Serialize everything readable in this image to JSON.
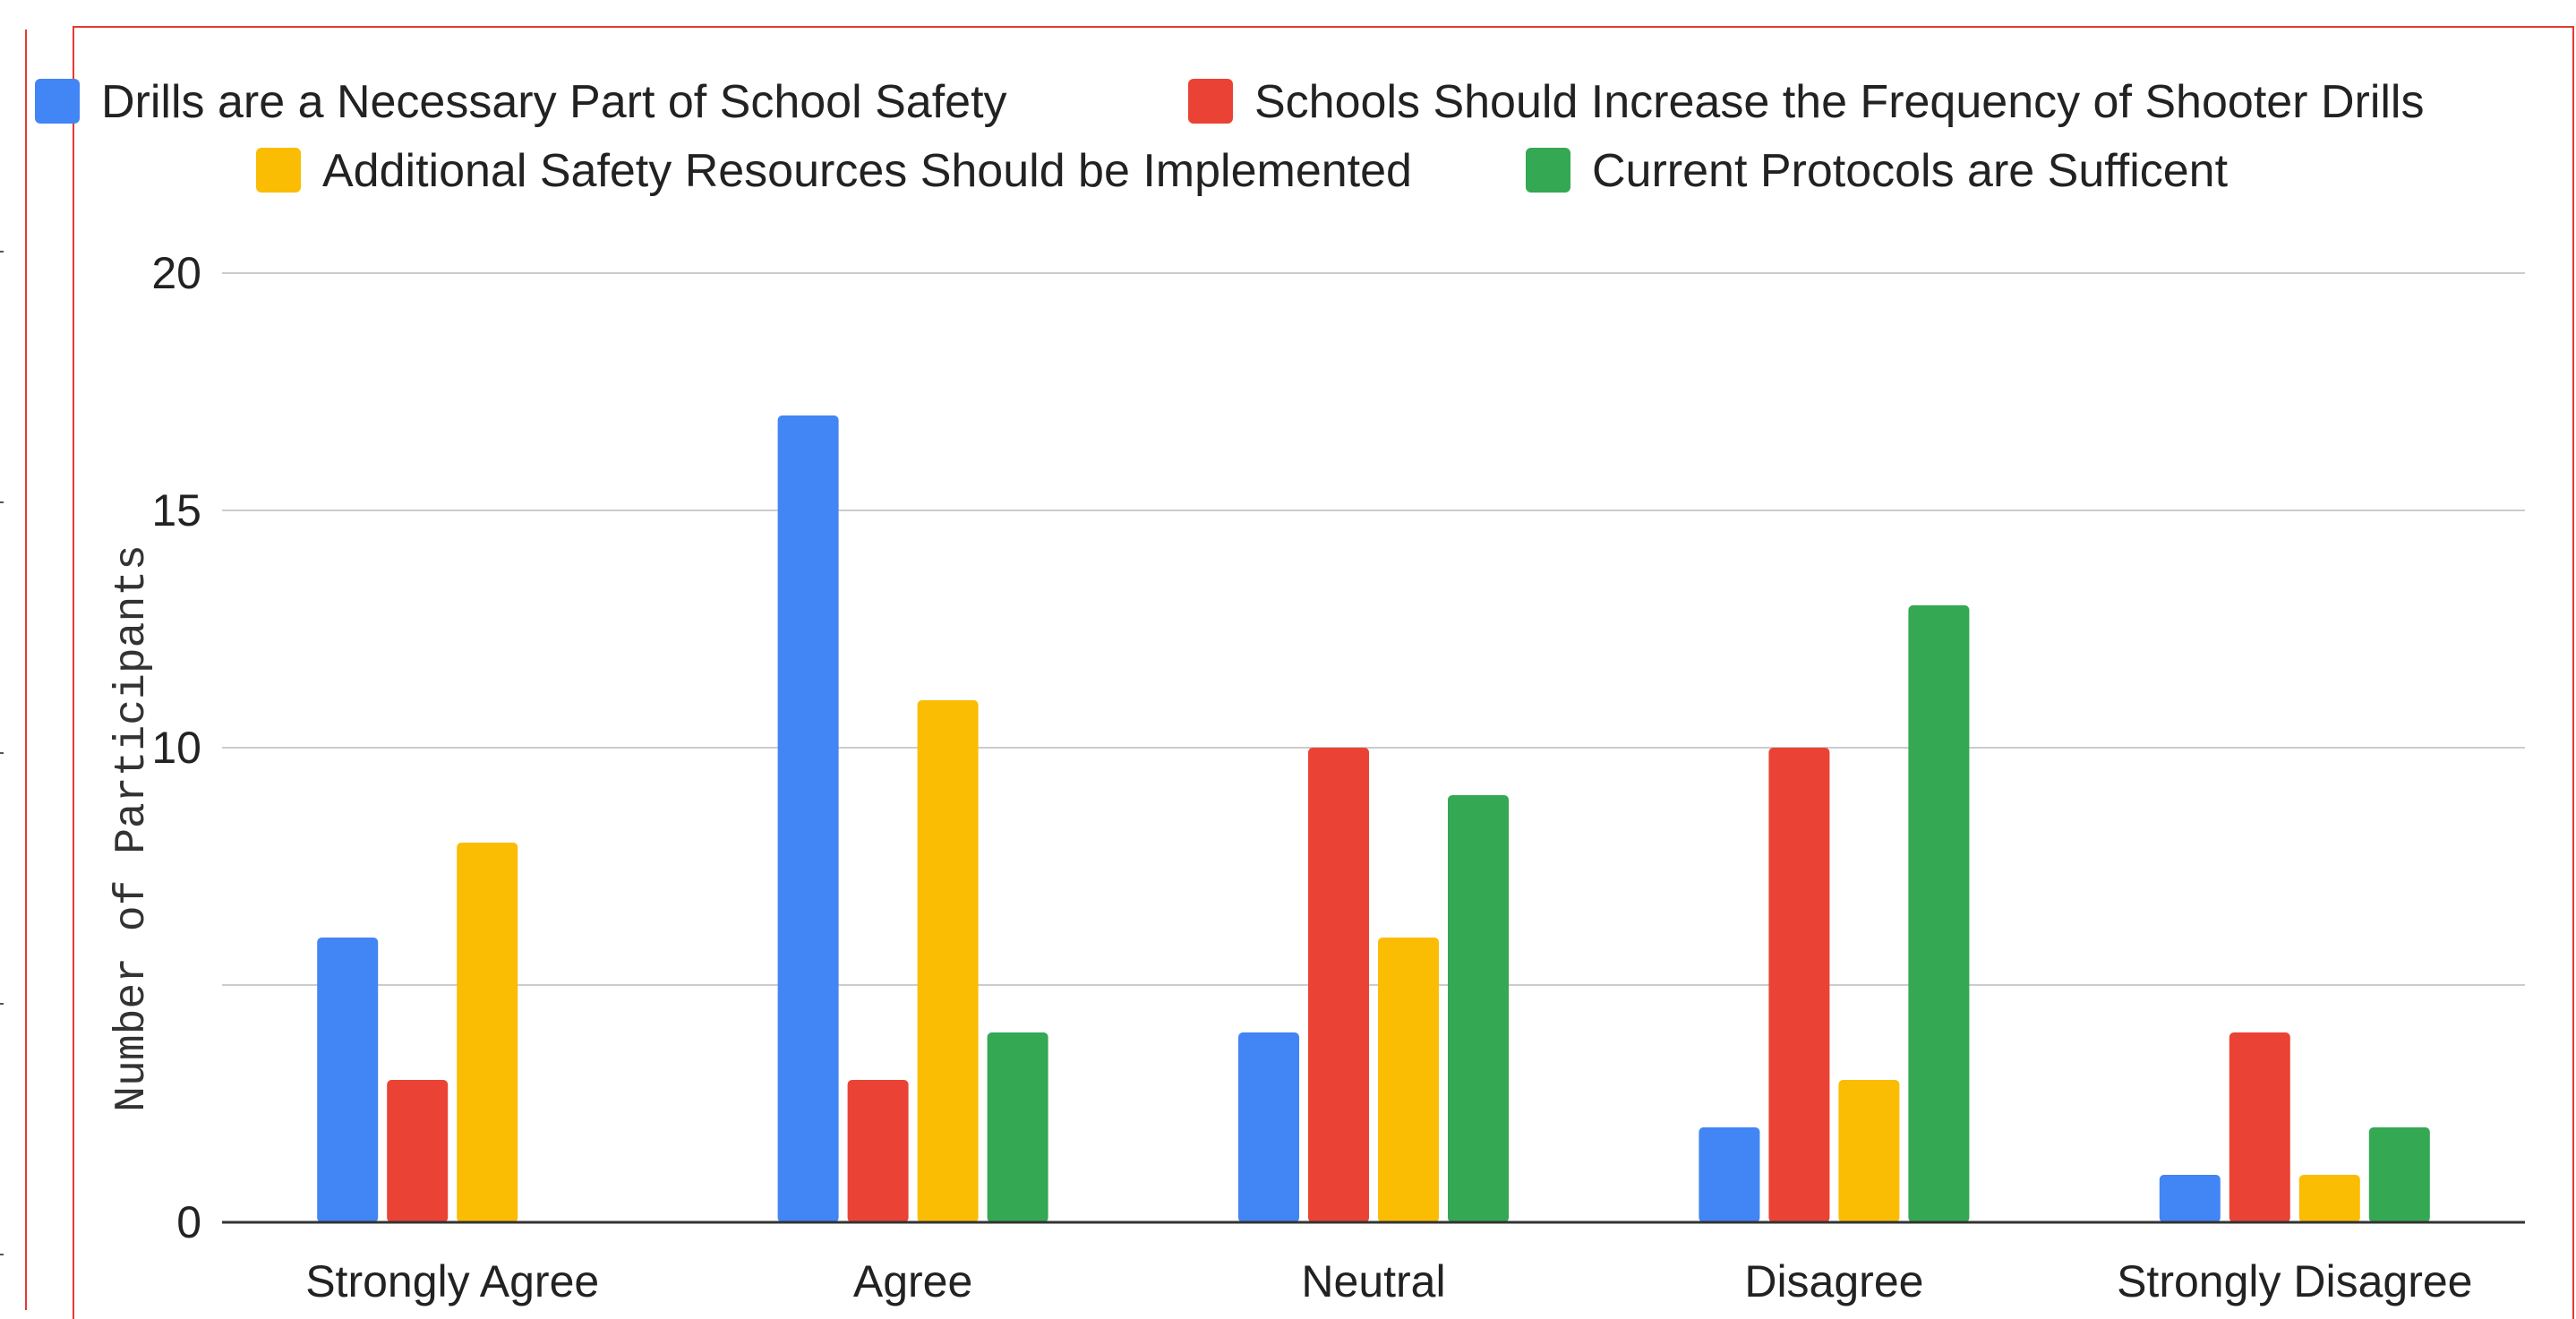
{
  "chart_data": {
    "type": "bar",
    "title": "",
    "xlabel": "",
    "ylabel": "Number of Participants",
    "ylim": [
      0,
      20
    ],
    "yticks": [
      0,
      5,
      10,
      15,
      20
    ],
    "ytick_labels": [
      "0",
      "",
      "10",
      "15",
      "20"
    ],
    "grid": true,
    "legend": "top",
    "categories": [
      "Strongly Agree",
      "Agree",
      "Neutral",
      "Disagree",
      "Strongly Disagree"
    ],
    "series": [
      {
        "name": "Drills are a Necessary Part of School Safety",
        "color": "#4285f4",
        "values": [
          6,
          17,
          4,
          2,
          1
        ]
      },
      {
        "name": "Schools Should Increase the Frequency of Shooter Drills",
        "color": "#ea4335",
        "values": [
          3,
          3,
          10,
          10,
          4
        ]
      },
      {
        "name": "Additional Safety Resources Should be Implemented",
        "color": "#fbbc04",
        "values": [
          8,
          11,
          6,
          3,
          1
        ]
      },
      {
        "name": "Current Protocols are Sufficent",
        "color": "#34a853",
        "values": [
          0,
          4,
          9,
          13,
          2
        ]
      }
    ]
  }
}
